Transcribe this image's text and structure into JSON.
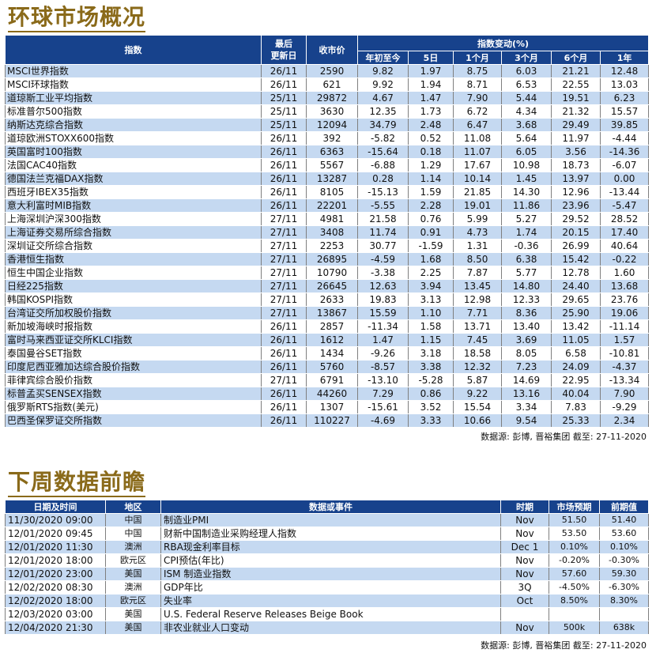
{
  "market": {
    "title": "环球市场概况",
    "headers": {
      "index": "指数",
      "last_update": "最后\n更新日",
      "close": "收市价",
      "change_group": "指数变动(%)",
      "ytd": "年初至今",
      "d5": "5日",
      "m1": "1个月",
      "m3": "3个月",
      "m6": "6个月",
      "y1": "1年"
    },
    "rows": [
      {
        "name": "MSCI世界指数",
        "date": "26/11",
        "close": "2590",
        "ytd": "9.82",
        "d5": "1.97",
        "m1": "8.75",
        "m3": "6.03",
        "m6": "21.21",
        "y1": "12.48"
      },
      {
        "name": "MSCI环球指数",
        "date": "26/11",
        "close": "621",
        "ytd": "9.92",
        "d5": "1.94",
        "m1": "8.71",
        "m3": "6.53",
        "m6": "22.55",
        "y1": "13.03"
      },
      {
        "name": "道琼斯工业平均指数",
        "date": "25/11",
        "close": "29872",
        "ytd": "4.67",
        "d5": "1.47",
        "m1": "7.90",
        "m3": "5.44",
        "m6": "19.51",
        "y1": "6.23"
      },
      {
        "name": "标准普尔500指数",
        "date": "25/11",
        "close": "3630",
        "ytd": "12.35",
        "d5": "1.73",
        "m1": "6.72",
        "m3": "4.34",
        "m6": "21.32",
        "y1": "15.57"
      },
      {
        "name": "纳斯达克综合指数",
        "date": "25/11",
        "close": "12094",
        "ytd": "34.79",
        "d5": "2.48",
        "m1": "6.47",
        "m3": "3.68",
        "m6": "29.49",
        "y1": "39.85"
      },
      {
        "name": "道琼欧洲STOXX600指数",
        "date": "26/11",
        "close": "392",
        "ytd": "-5.82",
        "d5": "0.52",
        "m1": "11.08",
        "m3": "5.64",
        "m6": "11.97",
        "y1": "-4.44"
      },
      {
        "name": "英国富时100指数",
        "date": "26/11",
        "close": "6363",
        "ytd": "-15.64",
        "d5": "0.18",
        "m1": "11.07",
        "m3": "6.05",
        "m6": "3.56",
        "y1": "-14.36"
      },
      {
        "name": "法国CAC40指数",
        "date": "26/11",
        "close": "5567",
        "ytd": "-6.88",
        "d5": "1.29",
        "m1": "17.67",
        "m3": "10.98",
        "m6": "18.73",
        "y1": "-6.07"
      },
      {
        "name": "德国法兰克福DAX指数",
        "date": "26/11",
        "close": "13287",
        "ytd": "0.28",
        "d5": "1.14",
        "m1": "10.14",
        "m3": "1.45",
        "m6": "13.97",
        "y1": "0.00"
      },
      {
        "name": "西班牙IBEX35指数",
        "date": "26/11",
        "close": "8105",
        "ytd": "-15.13",
        "d5": "1.59",
        "m1": "21.85",
        "m3": "14.30",
        "m6": "12.96",
        "y1": "-13.44"
      },
      {
        "name": "意大利富时MIB指数",
        "date": "26/11",
        "close": "22201",
        "ytd": "-5.55",
        "d5": "2.28",
        "m1": "19.01",
        "m3": "11.86",
        "m6": "23.96",
        "y1": "-5.47"
      },
      {
        "name": "上海深圳沪深300指数",
        "date": "27/11",
        "close": "4981",
        "ytd": "21.58",
        "d5": "0.76",
        "m1": "5.99",
        "m3": "5.27",
        "m6": "29.52",
        "y1": "28.52"
      },
      {
        "name": "上海证券交易所综合指数",
        "date": "27/11",
        "close": "3408",
        "ytd": "11.74",
        "d5": "0.91",
        "m1": "4.73",
        "m3": "1.74",
        "m6": "20.15",
        "y1": "17.40"
      },
      {
        "name": "深圳证交所综合指数",
        "date": "27/11",
        "close": "2253",
        "ytd": "30.77",
        "d5": "-1.59",
        "m1": "1.31",
        "m3": "-0.36",
        "m6": "26.99",
        "y1": "40.64"
      },
      {
        "name": "香港恒生指数",
        "date": "27/11",
        "close": "26895",
        "ytd": "-4.59",
        "d5": "1.68",
        "m1": "8.50",
        "m3": "6.38",
        "m6": "15.42",
        "y1": "-0.22"
      },
      {
        "name": "恒生中国企业指数",
        "date": "27/11",
        "close": "10790",
        "ytd": "-3.38",
        "d5": "2.25",
        "m1": "7.87",
        "m3": "5.77",
        "m6": "12.78",
        "y1": "1.60"
      },
      {
        "name": "日经225指数",
        "date": "27/11",
        "close": "26645",
        "ytd": "12.63",
        "d5": "3.94",
        "m1": "13.45",
        "m3": "14.80",
        "m6": "24.40",
        "y1": "13.68"
      },
      {
        "name": "韩国KOSPI指数",
        "date": "27/11",
        "close": "2633",
        "ytd": "19.83",
        "d5": "3.13",
        "m1": "12.98",
        "m3": "12.33",
        "m6": "29.65",
        "y1": "23.76"
      },
      {
        "name": "台湾证交所加权股价指数",
        "date": "27/11",
        "close": "13867",
        "ytd": "15.59",
        "d5": "1.10",
        "m1": "7.71",
        "m3": "8.36",
        "m6": "25.90",
        "y1": "19.06"
      },
      {
        "name": "新加坡海峡时报指数",
        "date": "26/11",
        "close": "2857",
        "ytd": "-11.34",
        "d5": "1.58",
        "m1": "13.71",
        "m3": "13.40",
        "m6": "13.42",
        "y1": "-11.14"
      },
      {
        "name": "富时马来西亚证交所KLCI指数",
        "date": "26/11",
        "close": "1612",
        "ytd": "1.47",
        "d5": "1.15",
        "m1": "7.45",
        "m3": "3.69",
        "m6": "11.05",
        "y1": "1.57"
      },
      {
        "name": "泰国曼谷SET指数",
        "date": "26/11",
        "close": "1434",
        "ytd": "-9.26",
        "d5": "3.18",
        "m1": "18.58",
        "m3": "8.05",
        "m6": "6.58",
        "y1": "-10.81"
      },
      {
        "name": "印度尼西亚雅加达综合股价指数",
        "date": "26/11",
        "close": "5760",
        "ytd": "-8.57",
        "d5": "3.38",
        "m1": "12.32",
        "m3": "7.23",
        "m6": "24.09",
        "y1": "-4.37"
      },
      {
        "name": "菲律宾综合股价指数",
        "date": "27/11",
        "close": "6791",
        "ytd": "-13.10",
        "d5": "-5.28",
        "m1": "5.87",
        "m3": "14.69",
        "m6": "22.95",
        "y1": "-13.34"
      },
      {
        "name": "标普孟买SENSEX指数",
        "date": "26/11",
        "close": "44260",
        "ytd": "7.29",
        "d5": "0.86",
        "m1": "9.22",
        "m3": "13.16",
        "m6": "40.04",
        "y1": "7.90"
      },
      {
        "name": "俄罗斯RTS指数(美元)",
        "date": "26/11",
        "close": "1307",
        "ytd": "-15.61",
        "d5": "3.52",
        "m1": "15.54",
        "m3": "3.34",
        "m6": "7.83",
        "y1": "-9.29"
      },
      {
        "name": "巴西圣保罗证交所指数",
        "date": "26/11",
        "close": "110227",
        "ytd": "-4.69",
        "d5": "3.33",
        "m1": "10.66",
        "m3": "9.54",
        "m6": "25.33",
        "y1": "2.34"
      }
    ],
    "source": "数据源: 彭博, 晋裕集团 截至: 27-11-2020"
  },
  "calendar": {
    "title": "下周数据前瞻",
    "headers": {
      "datetime": "日期及时间",
      "region": "地区",
      "event": "数据或事件",
      "period": "时期",
      "forecast": "市场预期",
      "previous": "前期值"
    },
    "rows": [
      {
        "datetime": "11/30/2020 09:00",
        "region": "中国",
        "event": "制造业PMI",
        "period": "Nov",
        "forecast": "51.50",
        "previous": "51.40"
      },
      {
        "datetime": "12/01/2020 09:45",
        "region": "中国",
        "event": "财新中国制造业采购经理人指数",
        "period": "Nov",
        "forecast": "53.50",
        "previous": "53.60"
      },
      {
        "datetime": "12/01/2020 11:30",
        "region": "澳洲",
        "event": "RBA现金利率目标",
        "period": "Dec 1",
        "forecast": "0.10%",
        "previous": "0.10%"
      },
      {
        "datetime": "12/01/2020 18:00",
        "region": "欧元区",
        "event": "CPI预估(年比)",
        "period": "Nov",
        "forecast": "-0.20%",
        "previous": "-0.30%"
      },
      {
        "datetime": "12/01/2020 23:00",
        "region": "美国",
        "event": "ISM 制造业指数",
        "period": "Nov",
        "forecast": "57.60",
        "previous": "59.30"
      },
      {
        "datetime": "12/02/2020 08:30",
        "region": "澳洲",
        "event": "GDP年比",
        "period": "3Q",
        "forecast": "-4.50%",
        "previous": "-6.30%"
      },
      {
        "datetime": "12/02/2020 18:00",
        "region": "欧元区",
        "event": "失业率",
        "period": "Oct",
        "forecast": "8.50%",
        "previous": "8.30%"
      },
      {
        "datetime": "12/03/2020 03:00",
        "region": "美国",
        "event": "U.S. Federal Reserve Releases Beige Book",
        "period": "",
        "forecast": "",
        "previous": ""
      },
      {
        "datetime": "12/04/2020 21:30",
        "region": "美国",
        "event": "非农业就业人口变动",
        "period": "Nov",
        "forecast": "500k",
        "previous": "638k"
      }
    ],
    "source": "数据源: 彭博, 晋裕集团 截至: 27-11-2020"
  }
}
